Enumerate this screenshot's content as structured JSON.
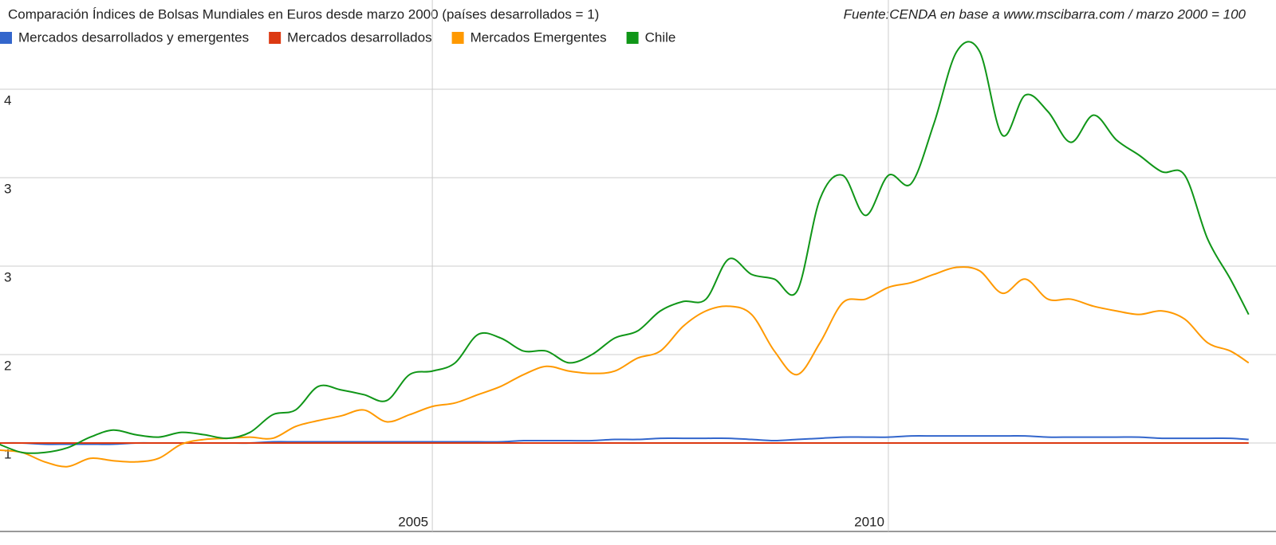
{
  "chart_data": {
    "type": "line",
    "title": "Comparación Índices de Bolsas Mundiales en Euros desde marzo 2000 (países desarrollados = 1)",
    "source": "Fuente:CENDA en base a www.mscibarra.com / marzo 2000 = 100",
    "x": [
      2000.25,
      2000.5,
      2000.75,
      2001,
      2001.25,
      2001.5,
      2001.75,
      2002,
      2002.25,
      2002.5,
      2002.75,
      2003,
      2003.25,
      2003.5,
      2003.75,
      2004,
      2004.25,
      2004.5,
      2004.75,
      2005,
      2005.25,
      2005.5,
      2005.75,
      2006,
      2006.25,
      2006.5,
      2006.75,
      2007,
      2007.25,
      2007.5,
      2007.75,
      2008,
      2008.25,
      2008.5,
      2008.75,
      2009,
      2009.25,
      2009.5,
      2009.75,
      2010,
      2010.25,
      2010.5,
      2010.75,
      2011,
      2011.25,
      2011.5,
      2011.75,
      2012,
      2012.25,
      2012.5,
      2012.75,
      2013,
      2013.25,
      2013.5,
      2013.75,
      2013.95
    ],
    "series": [
      {
        "name": "Mercados desarrollados y emergentes",
        "color": "#3366cc",
        "values": [
          1.0,
          1.0,
          0.99,
          0.99,
          0.99,
          0.99,
          1.0,
          1.0,
          1.0,
          1.0,
          1.0,
          1.0,
          1.01,
          1.01,
          1.01,
          1.01,
          1.01,
          1.01,
          1.01,
          1.01,
          1.01,
          1.01,
          1.01,
          1.02,
          1.02,
          1.02,
          1.02,
          1.03,
          1.03,
          1.04,
          1.04,
          1.04,
          1.04,
          1.03,
          1.02,
          1.03,
          1.04,
          1.05,
          1.05,
          1.05,
          1.06,
          1.06,
          1.06,
          1.06,
          1.06,
          1.06,
          1.05,
          1.05,
          1.05,
          1.05,
          1.05,
          1.04,
          1.04,
          1.04,
          1.04,
          1.03
        ]
      },
      {
        "name": "Mercados desarrollados",
        "color": "#dc3912",
        "values": [
          1,
          1,
          1,
          1,
          1,
          1,
          1,
          1,
          1,
          1,
          1,
          1,
          1,
          1,
          1,
          1,
          1,
          1,
          1,
          1,
          1,
          1,
          1,
          1,
          1,
          1,
          1,
          1,
          1,
          1,
          1,
          1,
          1,
          1,
          1,
          1,
          1,
          1,
          1,
          1,
          1,
          1,
          1,
          1,
          1,
          1,
          1,
          1,
          1,
          1,
          1,
          1,
          1,
          1,
          1,
          1
        ]
      },
      {
        "name": "Mercados Emergentes",
        "color": "#ff9900",
        "values": [
          0.94,
          0.92,
          0.84,
          0.8,
          0.87,
          0.85,
          0.84,
          0.87,
          0.99,
          1.03,
          1.04,
          1.05,
          1.04,
          1.14,
          1.19,
          1.23,
          1.28,
          1.18,
          1.24,
          1.31,
          1.34,
          1.41,
          1.48,
          1.58,
          1.65,
          1.61,
          1.59,
          1.61,
          1.72,
          1.78,
          1.99,
          2.12,
          2.16,
          2.09,
          1.78,
          1.58,
          1.85,
          2.19,
          2.22,
          2.32,
          2.36,
          2.43,
          2.49,
          2.46,
          2.27,
          2.39,
          2.22,
          2.22,
          2.16,
          2.12,
          2.09,
          2.12,
          2.05,
          1.85,
          1.78,
          1.68
        ]
      },
      {
        "name": "Chile",
        "color": "#109618",
        "values": [
          0.99,
          0.92,
          0.92,
          0.96,
          1.05,
          1.11,
          1.07,
          1.05,
          1.09,
          1.07,
          1.04,
          1.09,
          1.24,
          1.28,
          1.48,
          1.45,
          1.41,
          1.36,
          1.58,
          1.61,
          1.68,
          1.92,
          1.89,
          1.78,
          1.78,
          1.68,
          1.75,
          1.89,
          1.95,
          2.12,
          2.2,
          2.22,
          2.56,
          2.43,
          2.39,
          2.29,
          3.07,
          3.27,
          2.93,
          3.27,
          3.2,
          3.71,
          4.32,
          4.32,
          3.61,
          3.95,
          3.81,
          3.55,
          3.78,
          3.57,
          3.44,
          3.3,
          3.27,
          2.73,
          2.39,
          2.09
        ]
      }
    ],
    "xlim": [
      2000.26,
      2013.97
    ],
    "xticks": [
      2005,
      2010
    ],
    "ylim": [
      0.25,
      4.75
    ],
    "yticks": [
      1,
      {
        "value": 1.75,
        "label": "2"
      },
      {
        "value": 2.5,
        "label": "3"
      },
      {
        "value": 3.25,
        "label": "3"
      },
      4
    ],
    "grid": true
  }
}
